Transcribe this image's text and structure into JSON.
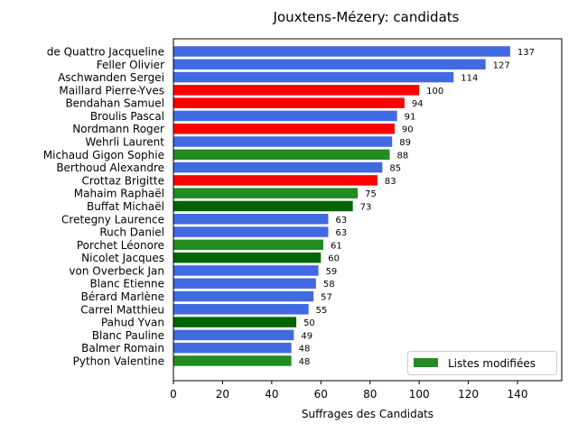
{
  "chart_data": {
    "type": "bar",
    "orientation": "horizontal",
    "title": "Jouxtens-Mézery: candidats",
    "xlabel": "Suffrages des Candidats",
    "ylabel": "",
    "xlim": [
      0,
      158
    ],
    "xticks": [
      "0",
      "20",
      "40",
      "60",
      "80",
      "100",
      "120",
      "140"
    ],
    "grid": false,
    "legend": {
      "position": "lower right",
      "entries": [
        {
          "label": "Listes modifiées",
          "color": "#228b22"
        }
      ]
    },
    "categories": [
      "de Quattro Jacqueline",
      "Feller Olivier",
      "Aschwanden Sergei",
      "Maillard Pierre-Yves",
      "Bendahan Samuel",
      "Broulis Pascal",
      "Nordmann Roger",
      "Wehrli Laurent",
      "Michaud Gigon Sophie",
      "Berthoud Alexandre",
      "Crottaz Brigitte",
      "Mahaim Raphaël",
      "Buffat Michaël",
      "Cretegny Laurence",
      "Ruch Daniel",
      "Porchet Léonore",
      "Nicolet Jacques",
      "von Overbeck Jan",
      "Blanc Etienne",
      "Bérard Marlène",
      "Carrel Matthieu",
      "Pahud Yvan",
      "Blanc Pauline",
      "Balmer Romain",
      "Python Valentine"
    ],
    "values": [
      137,
      127,
      114,
      100,
      94,
      91,
      90,
      89,
      88,
      85,
      83,
      75,
      73,
      63,
      63,
      61,
      60,
      59,
      58,
      57,
      55,
      50,
      49,
      48,
      48
    ],
    "value_labels": [
      "137",
      "127",
      "114",
      "100",
      "94",
      "91",
      "90",
      "89",
      "88",
      "85",
      "83",
      "75",
      "73",
      "63",
      "63",
      "61",
      "60",
      "59",
      "58",
      "57",
      "55",
      "50",
      "49",
      "48",
      "48"
    ],
    "colors": [
      "#4169e1",
      "#4169e1",
      "#4169e1",
      "#ff0000",
      "#ff0000",
      "#4169e1",
      "#ff0000",
      "#4169e1",
      "#228b22",
      "#4169e1",
      "#ff0000",
      "#228b22",
      "#006400",
      "#4169e1",
      "#4169e1",
      "#228b22",
      "#006400",
      "#4169e1",
      "#4169e1",
      "#4169e1",
      "#4169e1",
      "#006400",
      "#4169e1",
      "#4169e1",
      "#228b22"
    ]
  }
}
